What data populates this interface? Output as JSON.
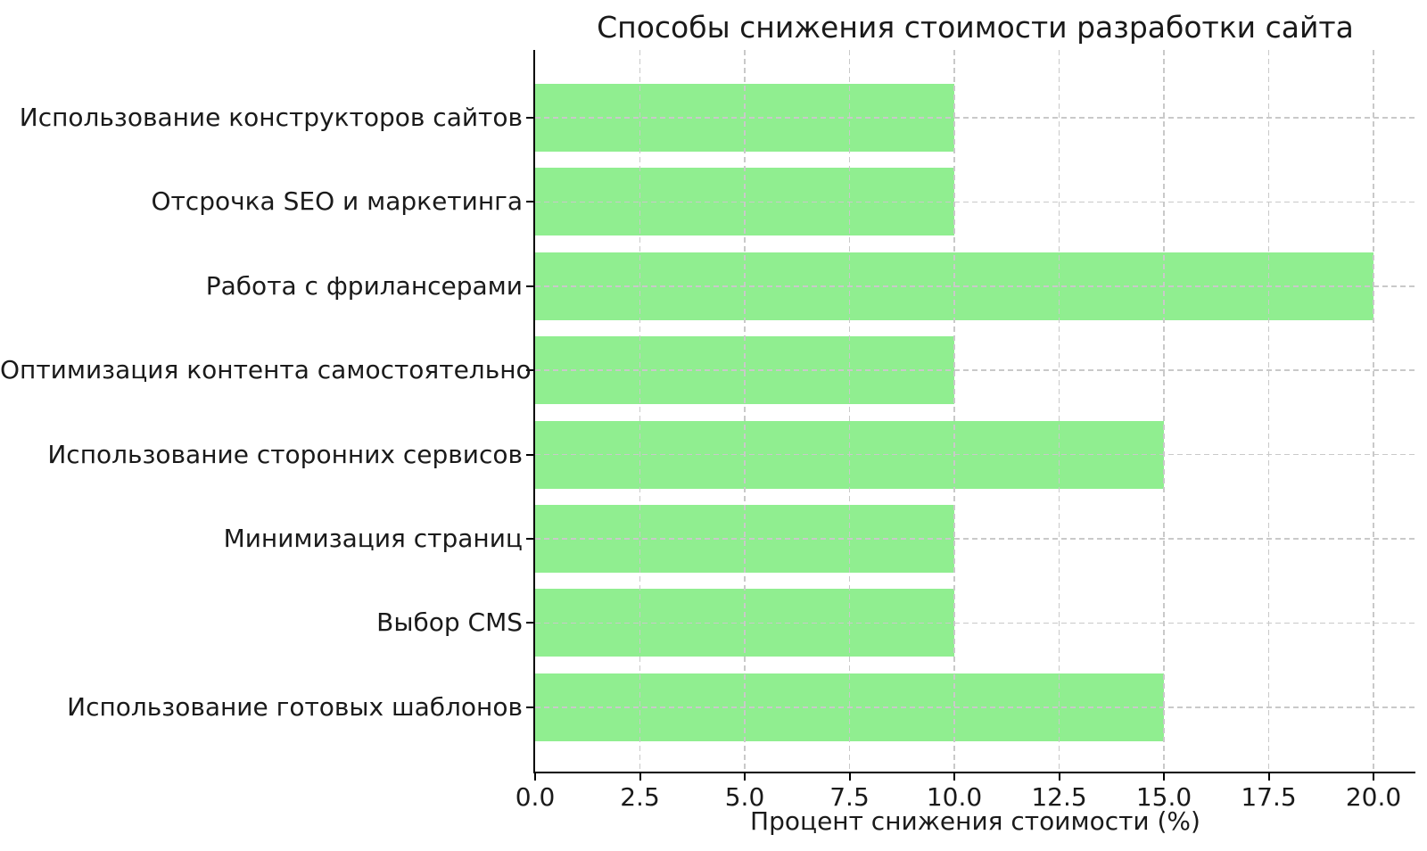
{
  "chart_data": {
    "type": "bar",
    "orientation": "horizontal",
    "title": "Способы снижения стоимости разработки сайта",
    "xlabel": "Процент снижения стоимости (%)",
    "ylabel": "",
    "categories": [
      "Использование конструкторов сайтов",
      "Отсрочка SEO и маркетинга",
      "Работа с фрилансерами",
      "Оптимизация контента самостоятельно",
      "Использование сторонних сервисов",
      "Минимизация страниц",
      "Выбор CMS",
      "Использование готовых шаблонов"
    ],
    "values": [
      10,
      10,
      20,
      10,
      15,
      10,
      10,
      15
    ],
    "xlim": [
      0,
      21
    ],
    "xticks": [
      0,
      2.5,
      5,
      7.5,
      10,
      12.5,
      15,
      17.5,
      20
    ],
    "xtick_labels": [
      "0.0",
      "2.5",
      "5.0",
      "7.5",
      "10.0",
      "12.5",
      "15.0",
      "17.5",
      "20.0"
    ],
    "grid": true,
    "grid_style": "dashed",
    "legend": false,
    "colors": {
      "bar": "#90EE90",
      "grid": "#c9c9c9",
      "spine": "#000000",
      "text": "#1a1a1a",
      "background": "#ffffff"
    }
  }
}
